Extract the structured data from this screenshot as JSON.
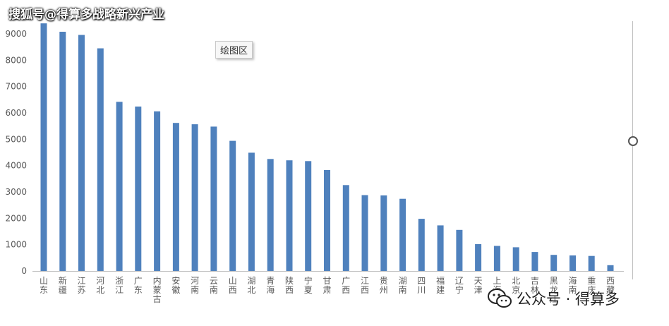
{
  "watermark_top": "搜狐号@得算多战略新兴产业",
  "tooltip_label": "绘图区",
  "wechat_watermark": "公众号 · 得算多",
  "chart_data": {
    "type": "bar",
    "title": "",
    "xlabel": "",
    "ylabel": "",
    "ylim": [
      0,
      9000
    ],
    "yticks": [
      0,
      1000,
      2000,
      3000,
      4000,
      5000,
      6000,
      7000,
      8000,
      9000
    ],
    "grid": false,
    "bar_color": "#4f81bd",
    "categories": [
      "山东",
      "新疆",
      "江苏",
      "河北",
      "浙江",
      "广东",
      "内蒙古",
      "安徽",
      "河南",
      "云南",
      "山西",
      "湖北",
      "青海",
      "陕西",
      "宁夏",
      "甘肃",
      "广西",
      "江西",
      "贵州",
      "湖南",
      "四川",
      "福建",
      "辽宁",
      "天津",
      "上海",
      "北京",
      "吉林",
      "黑龙江",
      "海南",
      "重庆",
      "西藏"
    ],
    "values": [
      9400,
      9080,
      8960,
      8450,
      6420,
      6240,
      6060,
      5620,
      5570,
      5480,
      4940,
      4490,
      4250,
      4200,
      4170,
      3830,
      3260,
      2880,
      2870,
      2740,
      1980,
      1730,
      1560,
      1020,
      950,
      900,
      720,
      610,
      590,
      570,
      220
    ]
  }
}
